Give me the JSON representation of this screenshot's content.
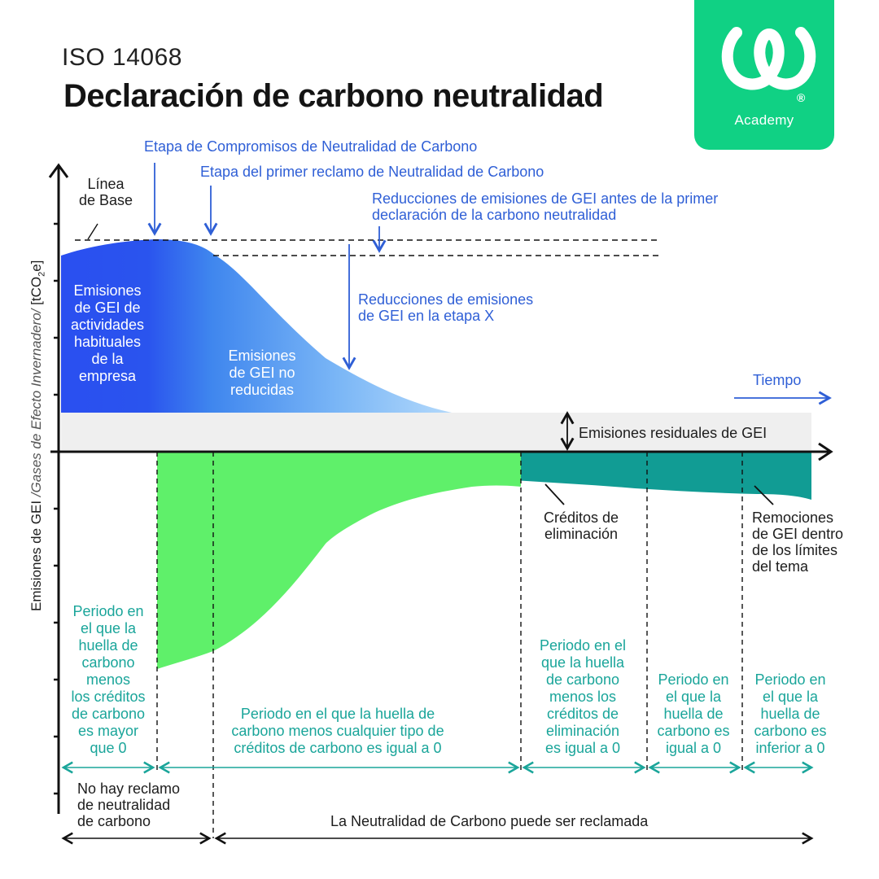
{
  "header": {
    "tag": "ISO 14068",
    "title": "Declaración de carbono neutralidad"
  },
  "logo": {
    "icon": "academy-w-logo-icon",
    "registered": "®",
    "brand": "Academy"
  },
  "annotations": {
    "commitment_stage": "Etapa de Compromisos de Neutralidad de Carbono",
    "first_claim_stage": "Etapa del primer reclamo de Neutralidad de Carbono",
    "reductions_before_1": "Reducciones de emisiones de GEI antes de la primer",
    "reductions_before_2": "declaración de la carbono neutralidad",
    "reductions_stage_x_1": "Reducciones de emisiones",
    "reductions_stage_x_2": "de GEI en la etapa X",
    "baseline_1": "Línea",
    "baseline_2": "de Base",
    "time": "Tiempo",
    "residual": "Emisiones residuales de GEI",
    "removal_credits_1": "Créditos de",
    "removal_credits_2": "eliminación",
    "removals_1": "Remociones",
    "removals_2": "de GEI dentro",
    "removals_3": "de los límites",
    "removals_4": "del tema"
  },
  "areas": {
    "habitual": [
      "Emisiones",
      "de GEI de",
      "actividades",
      "habituales",
      "de la",
      "empresa"
    ],
    "not_reduced": [
      "Emisiones",
      "de GEI no",
      "reducidas"
    ]
  },
  "y_axis": {
    "label_main": "Emisiones de GEI",
    "label_italic": "/Gases de Efecto Invernadero/",
    "label_unit": "[tCO",
    "label_sub": "2",
    "label_end": "e]"
  },
  "periods": {
    "p1": [
      "Periodo en",
      "el que la",
      "huella de",
      "carbono",
      "menos",
      "los créditos",
      "de carbono",
      "es mayor",
      "que 0"
    ],
    "p2": [
      "Periodo en el que la huella de",
      "carbono menos cualquier tipo de",
      "créditos de carbono es igual a 0"
    ],
    "p3": [
      "Periodo en el",
      "que la huella",
      "de carbono",
      "menos los",
      "créditos de",
      "eliminación",
      "es igual a 0"
    ],
    "p4": [
      "Periodo en",
      "el que la",
      "huella de",
      "carbono es",
      "igual a 0"
    ],
    "p5": [
      "Periodo en",
      "el que la",
      "huella de",
      "carbono es",
      "inferior a 0"
    ]
  },
  "bottom": {
    "no_claim": [
      "No hay reclamo",
      "de neutralidad",
      "de carbono"
    ],
    "claimable": "La Neutralidad de Carbono puede ser reclamada"
  },
  "colors": {
    "blue_dark": "#2a4ff0",
    "blue_light": "#a9d3fb",
    "green": "#5ff06a",
    "teal": "#119c94",
    "residual_band": "#efefef",
    "period_text": "#1aa59a",
    "annotation_blue": "#2f5fd6",
    "logo_green": "#10d184"
  }
}
